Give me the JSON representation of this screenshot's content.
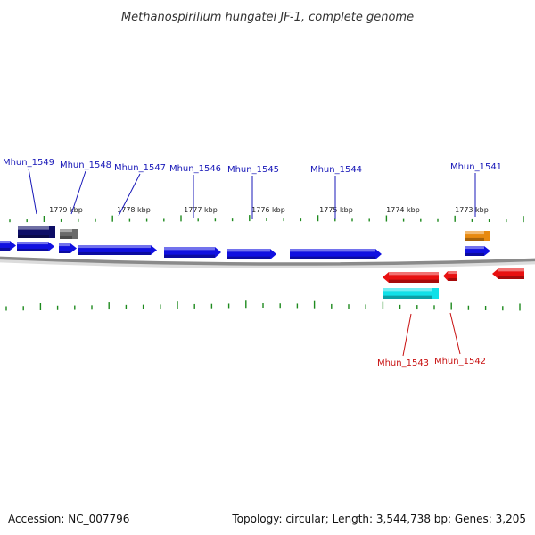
{
  "title": "Methanospirillum hungatei JF-1, complete genome",
  "footer": {
    "accession": "Accession: NC_007796",
    "summary": "Topology: circular; Length: 3,544,738 bp; Genes: 3,205"
  },
  "colors": {
    "forward_cds": "#1010e0",
    "forward_label": "#1818b8",
    "reverse_cds": "#e81010",
    "reverse_label": "#c81010",
    "rna_dark": "#0d0d66",
    "pseudo_gray": "#6a6a6a",
    "orange": "#e88a10",
    "cyan": "#10e0e8",
    "tick": "#1e8a1e",
    "backbone": "#808080"
  },
  "tick_labels": [
    {
      "kbp": 1779,
      "text": "1779 kbp"
    },
    {
      "kbp": 1778,
      "text": "1778 kbp"
    },
    {
      "kbp": 1777,
      "text": "1777 kbp"
    },
    {
      "kbp": 1776,
      "text": "1776 kbp"
    },
    {
      "kbp": 1775,
      "text": "1775 kbp"
    },
    {
      "kbp": 1774,
      "text": "1774 kbp"
    },
    {
      "kbp": 1773,
      "text": "1773 kbp"
    }
  ],
  "gene_labels": [
    {
      "text": "Mhun_1549",
      "strand": "forward"
    },
    {
      "text": "Mhun_1548",
      "strand": "forward"
    },
    {
      "text": "Mhun_1547",
      "strand": "forward"
    },
    {
      "text": "Mhun_1546",
      "strand": "forward"
    },
    {
      "text": "Mhun_1545",
      "strand": "forward"
    },
    {
      "text": "Mhun_1544",
      "strand": "forward"
    },
    {
      "text": "Mhun_1541",
      "strand": "forward"
    },
    {
      "text": "Mhun_1543",
      "strand": "reverse"
    },
    {
      "text": "Mhun_1542",
      "strand": "reverse"
    }
  ]
}
